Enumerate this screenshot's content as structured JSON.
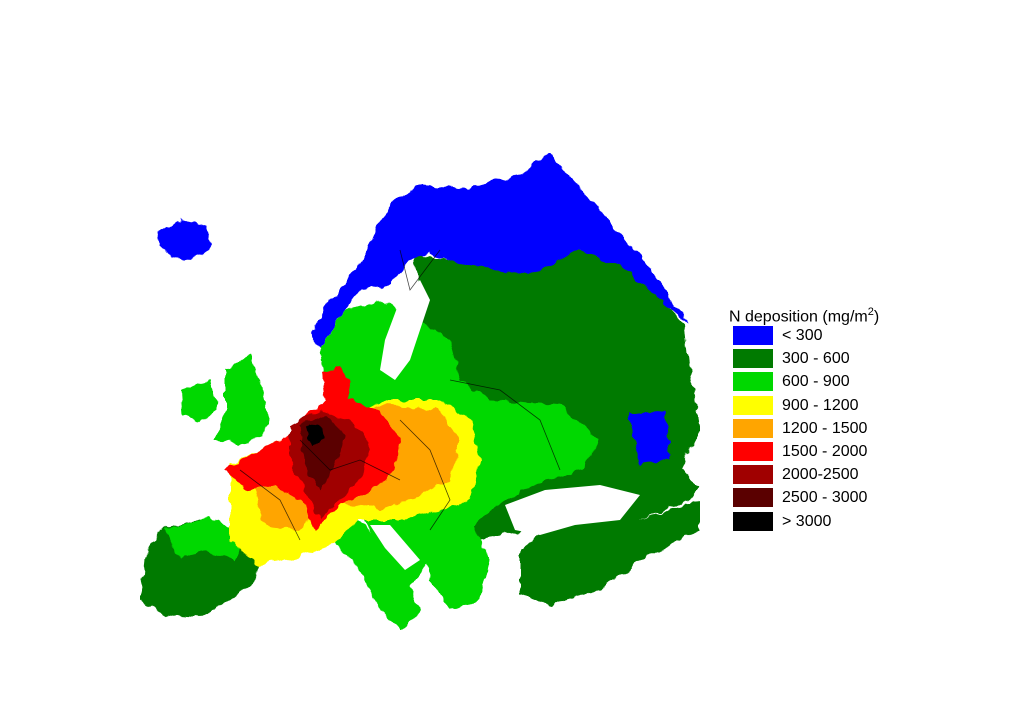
{
  "legend": {
    "title_prefix": "N deposition (mg/m",
    "title_sup": "2",
    "title_suffix": ")",
    "classes": [
      {
        "label": "< 300",
        "color": "#0000ff"
      },
      {
        "label": "300 - 600",
        "color": "#007a00"
      },
      {
        "label": "600 - 900",
        "color": "#00d800"
      },
      {
        "label": "900 - 1200",
        "color": "#ffff00"
      },
      {
        "label": "1200 - 1500",
        "color": "#ffa500"
      },
      {
        "label": "1500 - 2000",
        "color": "#ff0000"
      },
      {
        "label": "2000-2500",
        "color": "#a00000"
      },
      {
        "label": "2500 - 3000",
        "color": "#5a0000"
      },
      {
        "label": "> 3000",
        "color": "#000000"
      }
    ]
  }
}
